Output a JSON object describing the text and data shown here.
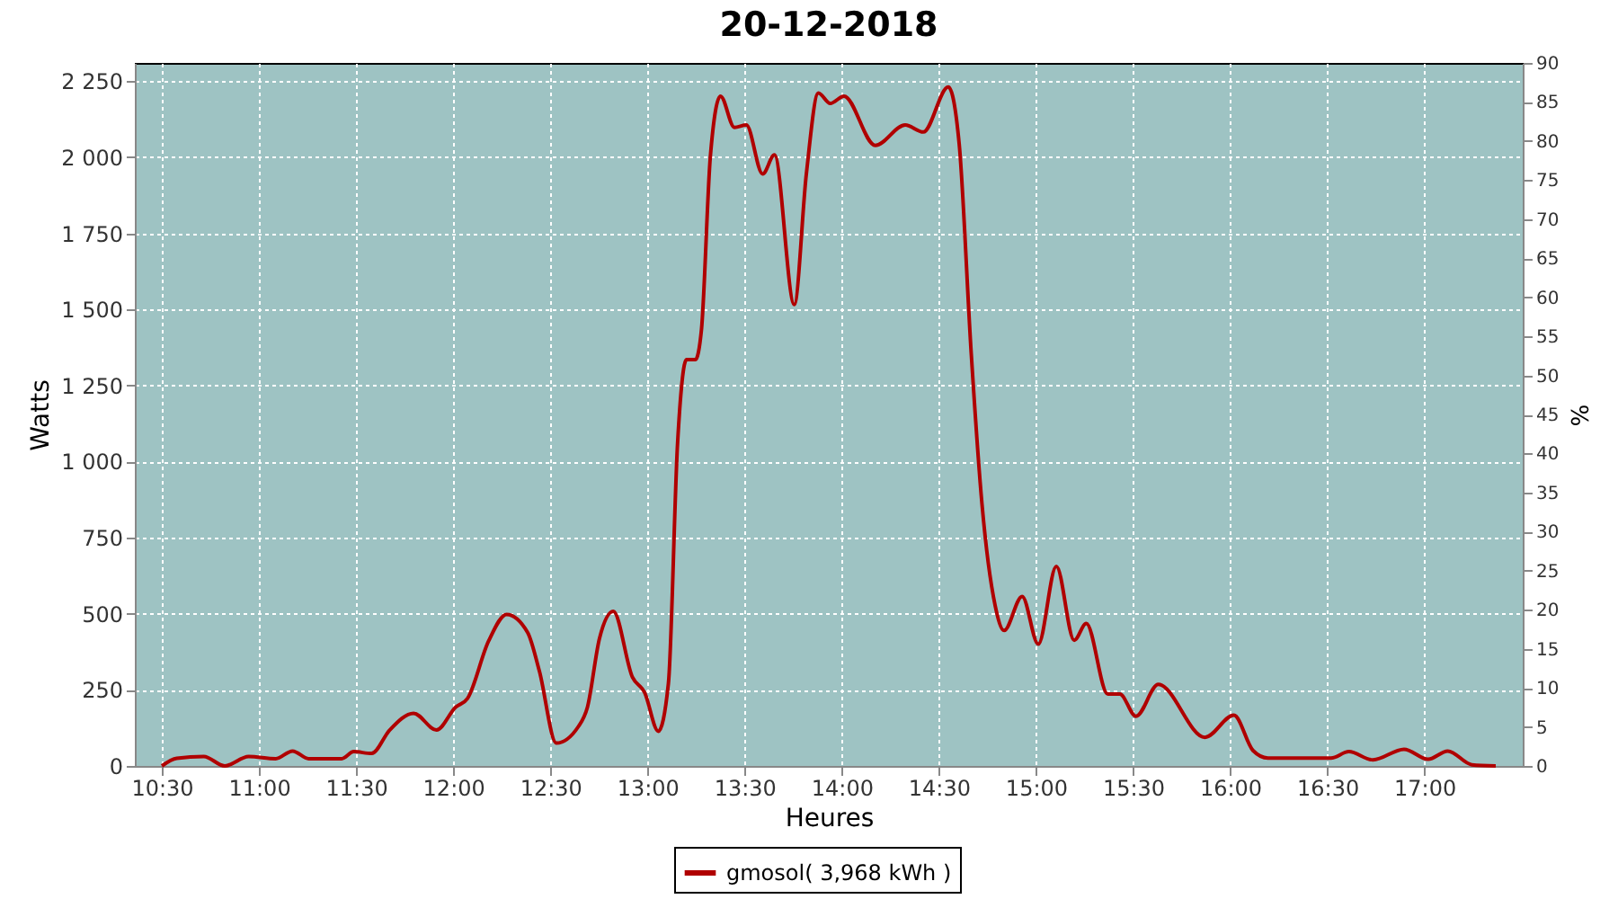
{
  "chart_data": {
    "type": "line",
    "title": "20-12-2018",
    "xlabel": "Heures",
    "ylabel": "Watts",
    "y2label": "%",
    "x": [
      10.5,
      10.577,
      10.716,
      10.824,
      10.947,
      11.086,
      11.173,
      11.256,
      11.426,
      11.488,
      11.58,
      11.673,
      11.796,
      11.914,
      12.012,
      12.074,
      12.182,
      12.275,
      12.383,
      12.444,
      12.531,
      12.645,
      12.691,
      12.753,
      12.824,
      12.923,
      12.985,
      13.056,
      13.108,
      13.155,
      13.201,
      13.247,
      13.278,
      13.324,
      13.376,
      13.448,
      13.509,
      13.593,
      13.654,
      13.756,
      13.818,
      13.88,
      13.941,
      14.012,
      14.173,
      14.327,
      14.42,
      14.549,
      14.605,
      14.667,
      14.722,
      14.79,
      14.836,
      14.929,
      15.012,
      15.105,
      15.197,
      15.259,
      15.37,
      15.432,
      15.515,
      15.63,
      15.87,
      16.019,
      16.117,
      16.194,
      16.519,
      16.611,
      16.735,
      16.895,
      17.019,
      17.12,
      17.244,
      17.367
    ],
    "series": [
      {
        "name": "gmosol( 3,968 kWh )",
        "color": "#b00000",
        "values": [
          0,
          25,
          31,
          0,
          31,
          24,
          49,
          24,
          24,
          47,
          41,
          118,
          173,
          118,
          193,
          222,
          410,
          498,
          439,
          311,
          75,
          130,
          193,
          419,
          508,
          291,
          242,
          114,
          272,
          1059,
          1335,
          1335,
          1433,
          2004,
          2201,
          2098,
          2106,
          1945,
          2008,
          1516,
          1945,
          2211,
          2177,
          2201,
          2039,
          2106,
          2083,
          2231,
          2043,
          1354,
          862,
          527,
          445,
          557,
          400,
          656,
          413,
          468,
          236,
          236,
          163,
          268,
          94,
          167,
          51,
          26,
          26,
          47,
          20,
          55,
          22,
          49,
          4,
          0
        ]
      }
    ],
    "xlim": [
      10.361,
      17.506
    ],
    "xticks": [
      {
        "value": 10.5,
        "label": "10:30"
      },
      {
        "value": 11,
        "label": "11:00"
      },
      {
        "value": 11.5,
        "label": "11:30"
      },
      {
        "value": 12,
        "label": "12:00"
      },
      {
        "value": 12.5,
        "label": "12:30"
      },
      {
        "value": 13,
        "label": "13:00"
      },
      {
        "value": 13.5,
        "label": "13:30"
      },
      {
        "value": 14,
        "label": "14:00"
      },
      {
        "value": 14.5,
        "label": "14:30"
      },
      {
        "value": 15,
        "label": "15:00"
      },
      {
        "value": 15.5,
        "label": "15:30"
      },
      {
        "value": 16,
        "label": "16:00"
      },
      {
        "value": 16.5,
        "label": "16:30"
      },
      {
        "value": 17,
        "label": "17:00"
      }
    ],
    "ylim": [
      0,
      2310
    ],
    "yticks": [
      0,
      250,
      500,
      750,
      {
        "value": 1000,
        "label": "1 000"
      },
      {
        "value": 1250,
        "label": "1 250"
      },
      {
        "value": 1500,
        "label": "1 500"
      },
      {
        "value": 1750,
        "label": "1 750"
      },
      {
        "value": 2000,
        "label": "2 000"
      },
      {
        "value": 2250,
        "label": "2 250"
      }
    ],
    "y2lim": [
      0,
      90
    ],
    "y2ticks": [
      0,
      5,
      10,
      15,
      20,
      25,
      30,
      35,
      40,
      45,
      50,
      55,
      60,
      65,
      70,
      75,
      80,
      85,
      90
    ],
    "grid": true,
    "legend": "bottom",
    "marker": "none",
    "line_style": "solid"
  }
}
